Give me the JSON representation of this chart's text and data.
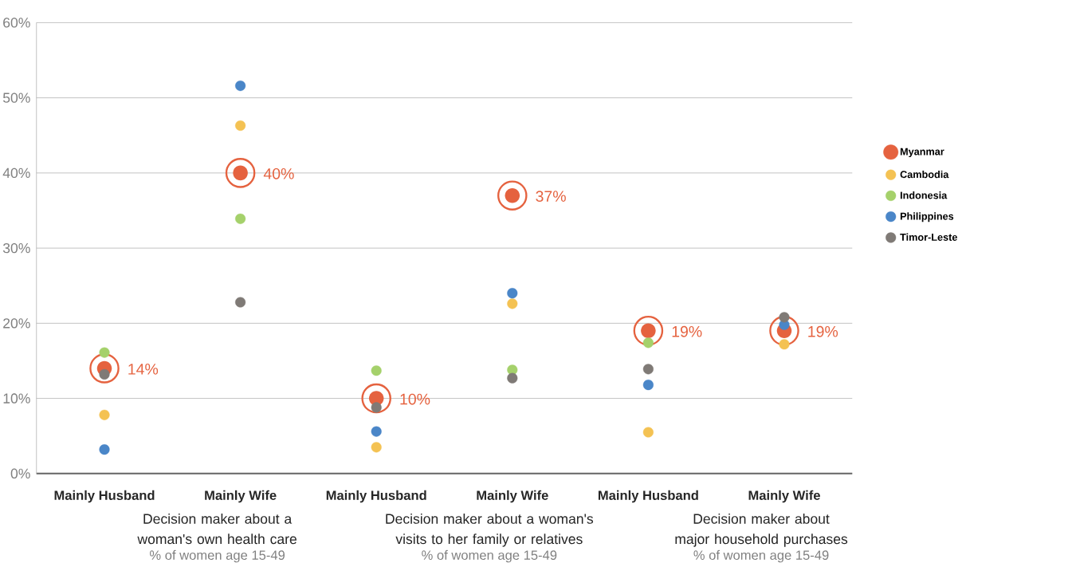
{
  "chart_data": {
    "type": "scatter",
    "categories": [
      "Mainly Husband",
      "Mainly Wife",
      "Mainly Husband",
      "Mainly Wife",
      "Mainly Husband",
      "Mainly Wife"
    ],
    "series": [
      {
        "name": "Myanmar",
        "color": "#e5623f",
        "values": [
          14,
          40,
          10,
          37,
          19,
          19
        ],
        "value_labels": [
          "14%",
          "40%",
          "10%",
          "37%",
          "19%",
          "19%"
        ]
      },
      {
        "name": "Cambodia",
        "color": "#f4c253",
        "values": [
          7.8,
          46.3,
          3.5,
          22.6,
          5.5,
          17.2
        ]
      },
      {
        "name": "Indonesia",
        "color": "#a5d16b",
        "values": [
          16.1,
          33.9,
          13.7,
          13.8,
          17.4,
          null
        ]
      },
      {
        "name": "Philippines",
        "color": "#4a86c8",
        "values": [
          3.2,
          51.6,
          5.6,
          24.0,
          11.8,
          19.8
        ]
      },
      {
        "name": "Timor-Leste",
        "color": "#7f7a76",
        "values": [
          13.2,
          22.8,
          8.8,
          12.7,
          13.9,
          20.8
        ]
      }
    ],
    "ylim": [
      0,
      60
    ],
    "yticks": [
      {
        "value": 0,
        "label": "0%"
      },
      {
        "value": 10,
        "label": "10%"
      },
      {
        "value": 20,
        "label": "20%"
      },
      {
        "value": 30,
        "label": "30%"
      },
      {
        "value": 40,
        "label": "40%"
      },
      {
        "value": 50,
        "label": "50%"
      },
      {
        "value": 60,
        "label": "60%"
      }
    ],
    "grid": "y",
    "legend": "right",
    "marker": "circle",
    "annotations": [
      "Decision maker about a woman's own health care",
      "% of women age 15-49",
      "Decision maker about a woman's visits to her family or relatives",
      "% of women age 15-49",
      "Decision maker about major household purchases",
      "% of women age 15-49"
    ]
  }
}
